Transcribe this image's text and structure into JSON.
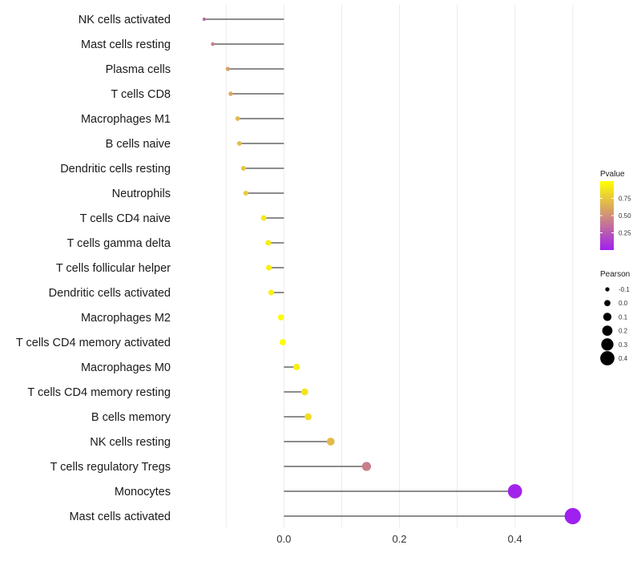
{
  "chart_data": {
    "type": "lollipop",
    "categories": [
      "NK cells activated",
      "Mast cells resting",
      "Plasma cells",
      "T cells CD8",
      "Macrophages M1",
      "B cells naive",
      "Dendritic cells resting",
      "Neutrophils",
      "T cells CD4 naive",
      "T cells gamma delta",
      "T cells follicular helper",
      "Dendritic cells activated",
      "Macrophages M2",
      "T cells CD4 memory activated",
      "Macrophages M0",
      "T cells CD4 memory resting",
      "B cells memory",
      "NK cells resting",
      "T cells regulatory  Tregs",
      "Monocytes",
      "Mast cells activated"
    ],
    "pearson": [
      -0.138,
      -0.123,
      -0.097,
      -0.092,
      -0.08,
      -0.077,
      -0.07,
      -0.066,
      -0.035,
      -0.027,
      -0.026,
      -0.022,
      -0.005,
      -0.002,
      0.022,
      0.036,
      0.042,
      0.081,
      0.143,
      0.4,
      0.5
    ],
    "pvalue": [
      0.32,
      0.42,
      0.58,
      0.6,
      0.68,
      0.7,
      0.75,
      0.77,
      0.9,
      0.92,
      0.93,
      0.94,
      0.98,
      0.99,
      0.93,
      0.88,
      0.85,
      0.69,
      0.42,
      0.02,
      0.002
    ],
    "x_ticks": [
      "0.0",
      "0.2",
      "0.4"
    ],
    "x_tick_values": [
      0.0,
      0.2,
      0.4
    ],
    "xlim": [
      -0.178,
      0.51
    ],
    "xlabel": "",
    "ylabel": "",
    "legend": {
      "color_title": "Pvalue",
      "color_labels": [
        "0.75",
        "0.50",
        "0.25"
      ],
      "color_values": [
        0.75,
        0.5,
        0.25
      ],
      "color_range": [
        0.0,
        1.0
      ],
      "color_low": "#a020f0",
      "color_high": "#ffff00",
      "size_title": "Pearson",
      "size_labels": [
        "-0.1",
        "0.0",
        "0.1",
        "0.2",
        "0.3",
        "0.4"
      ],
      "size_values": [
        -0.1,
        0.0,
        0.1,
        0.2,
        0.3,
        0.4
      ],
      "position": "right"
    },
    "grid": true
  }
}
